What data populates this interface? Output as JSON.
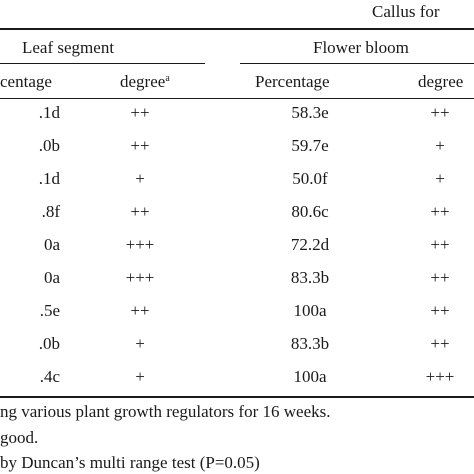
{
  "table": {
    "title_fragment": "Callus for",
    "group_headers": {
      "leaf": "Leaf segment",
      "flower": "Flower bloom"
    },
    "sub_headers": {
      "leaf_percentage": "centage",
      "leaf_degree": "degree",
      "leaf_degree_sup": "a",
      "flower_percentage": "Percentage",
      "flower_degree": "degree"
    },
    "rows": [
      {
        "leaf_pct": ".1d",
        "leaf_deg": "++",
        "flower_pct": "58.3e",
        "flower_deg": "++"
      },
      {
        "leaf_pct": ".0b",
        "leaf_deg": "++",
        "flower_pct": "59.7e",
        "flower_deg": "+"
      },
      {
        "leaf_pct": ".1d",
        "leaf_deg": "+",
        "flower_pct": "50.0f",
        "flower_deg": "+"
      },
      {
        "leaf_pct": ".8f",
        "leaf_deg": "++",
        "flower_pct": "80.6c",
        "flower_deg": "++"
      },
      {
        "leaf_pct": "0a",
        "leaf_deg": "+++",
        "flower_pct": "72.2d",
        "flower_deg": "++"
      },
      {
        "leaf_pct": "0a",
        "leaf_deg": "+++",
        "flower_pct": "83.3b",
        "flower_deg": "++"
      },
      {
        "leaf_pct": ".5e",
        "leaf_deg": "++",
        "flower_pct": "100a",
        "flower_deg": "++"
      },
      {
        "leaf_pct": ".0b",
        "leaf_deg": "+",
        "flower_pct": "83.3b",
        "flower_deg": "++"
      },
      {
        "leaf_pct": ".4c",
        "leaf_deg": "+",
        "flower_pct": "100a",
        "flower_deg": "+++"
      }
    ]
  },
  "footnotes": [
    "ng various plant growth regulators for 16 weeks.",
    "good.",
    "by Duncan’s multi range test (P=0.05)"
  ]
}
